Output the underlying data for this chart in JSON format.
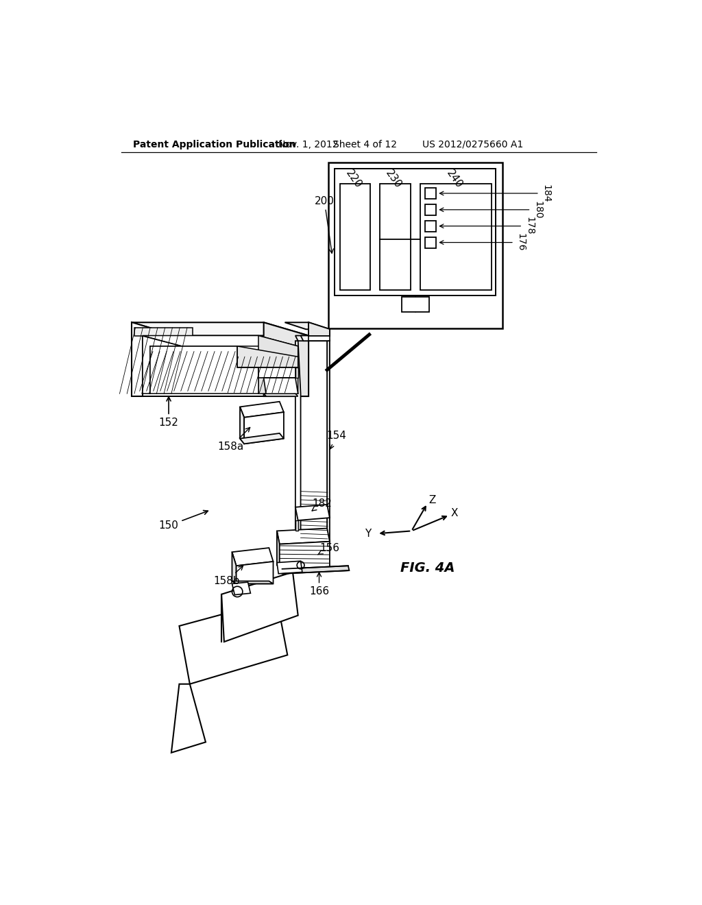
{
  "bg_color": "#ffffff",
  "header_text": "Patent Application Publication",
  "header_date": "Nov. 1, 2012",
  "header_sheet": "Sheet 4 of 12",
  "header_patent": "US 2012/0275660 A1",
  "fig_label": "FIG. 4A",
  "line_color": "#000000",
  "text_color": "#000000"
}
